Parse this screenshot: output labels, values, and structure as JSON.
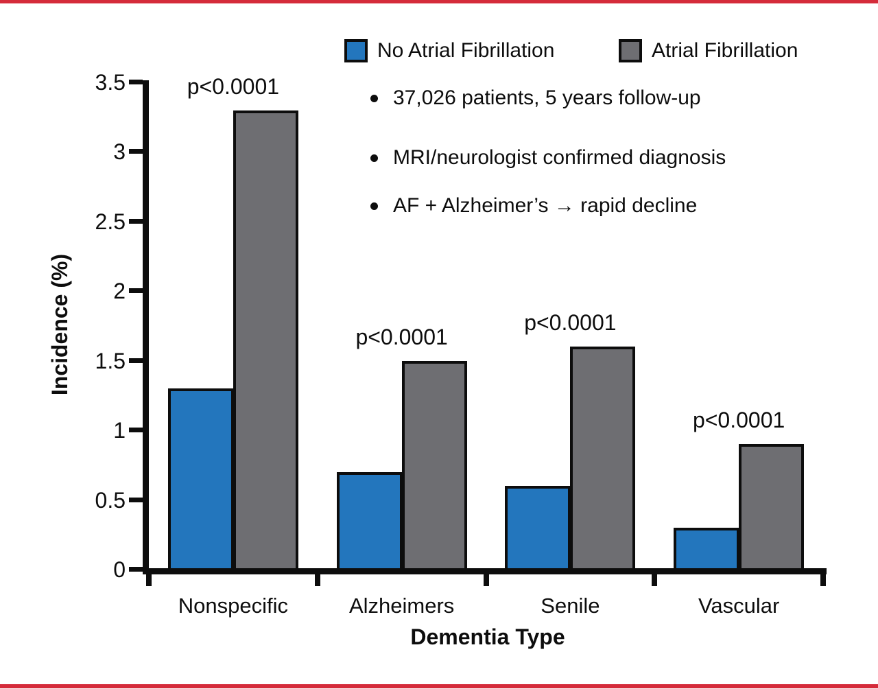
{
  "colors": {
    "no_af_blue": "#2376bd",
    "af_gray": "#6e6e72",
    "axis_black": "#0d0d0d",
    "frame_red": "#d52b3a"
  },
  "legend": {
    "items": [
      {
        "label": "No Atrial Fibrillation",
        "color_key": "no_af_blue"
      },
      {
        "label": "Atrial Fibrillation",
        "color_key": "af_gray"
      }
    ]
  },
  "notes": {
    "items": [
      "37,026 patients, 5 years follow-up",
      "MRI/neurologist confirmed diagnosis",
      "AF + Alzheimer’s → rapid decline"
    ]
  },
  "chart_data": {
    "type": "bar",
    "title": "",
    "xlabel": "Dementia Type",
    "ylabel": "Incidence (%)",
    "categories": [
      "Nonspecific",
      "Alzheimers",
      "Senile",
      "Vascular"
    ],
    "series": [
      {
        "name": "No Atrial Fibrillation",
        "color_key": "no_af_blue",
        "values": [
          1.3,
          0.7,
          0.6,
          0.3
        ]
      },
      {
        "name": "Atrial Fibrillation",
        "color_key": "af_gray",
        "values": [
          3.3,
          1.5,
          1.6,
          0.9
        ]
      }
    ],
    "p_values": [
      "p<0.0001",
      "p<0.0001",
      "p<0.0001",
      "p<0.0001"
    ],
    "ylim": [
      0,
      3.5
    ],
    "ytick_step": 0.5,
    "yticks": [
      "0",
      "0.5",
      "1",
      "1.5",
      "2",
      "2.5",
      "3",
      "3.5"
    ],
    "grid": false,
    "legend_position": "top-right"
  }
}
